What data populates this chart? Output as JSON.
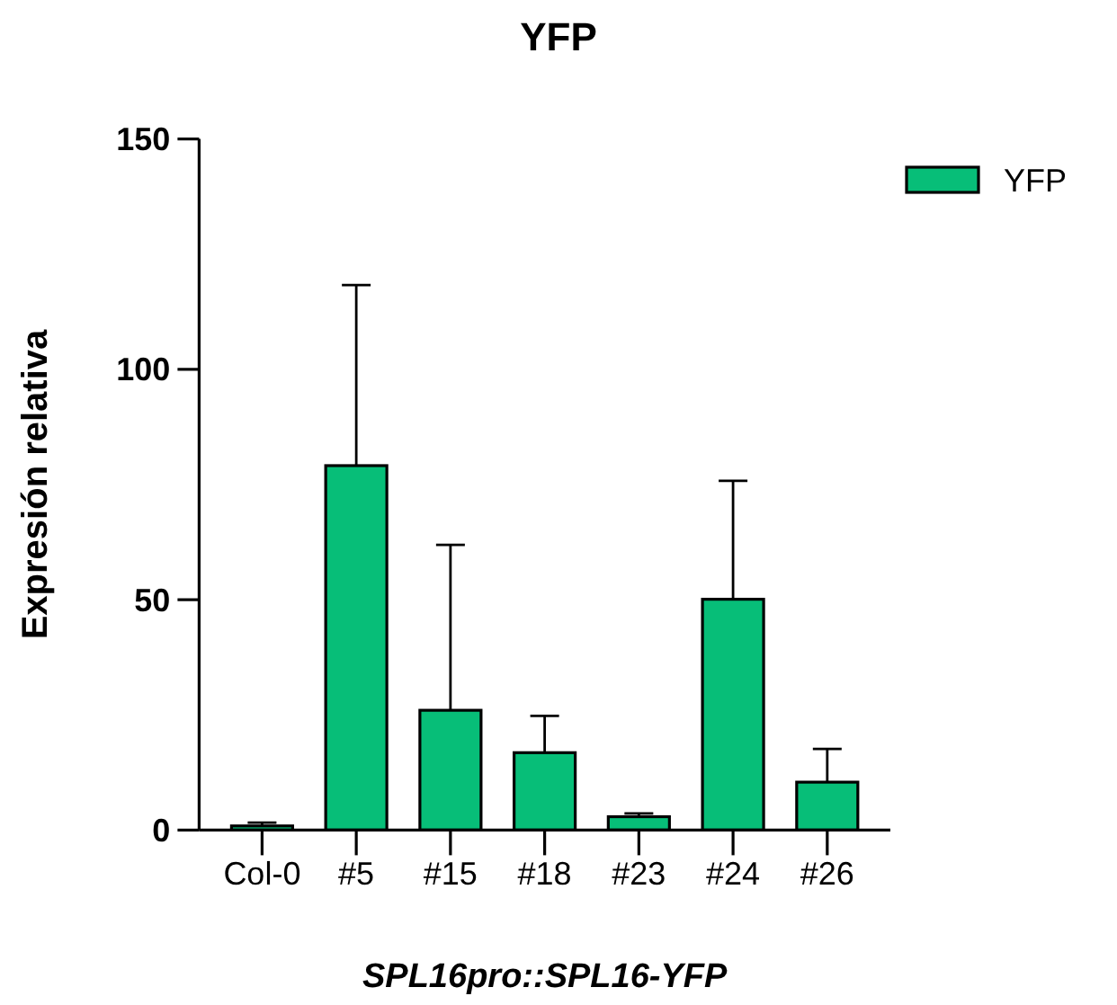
{
  "chart_data": {
    "type": "bar",
    "title": "YFP",
    "xlabel": "SPL16pro::SPL16-YFP",
    "ylabel": "Expresión relativa",
    "categories": [
      "Col-0",
      "#5",
      "#15",
      "#18",
      "#23",
      "#24",
      "#26"
    ],
    "series": [
      {
        "name": "YFP",
        "color": "#07be78",
        "values": [
          0.9,
          79.1,
          26.0,
          16.8,
          2.9,
          50.1,
          10.4
        ],
        "errors": [
          [
            0.9,
            1.6
          ],
          [
            79.1,
            118.3
          ],
          [
            26.0,
            61.9
          ],
          [
            16.8,
            24.8
          ],
          [
            2.9,
            3.6
          ],
          [
            50.1,
            75.8
          ],
          [
            10.4,
            17.6
          ]
        ]
      }
    ],
    "ylim": [
      0,
      150
    ],
    "yticks": [
      0,
      50,
      100,
      150
    ],
    "grid": false,
    "legend": "top right"
  }
}
